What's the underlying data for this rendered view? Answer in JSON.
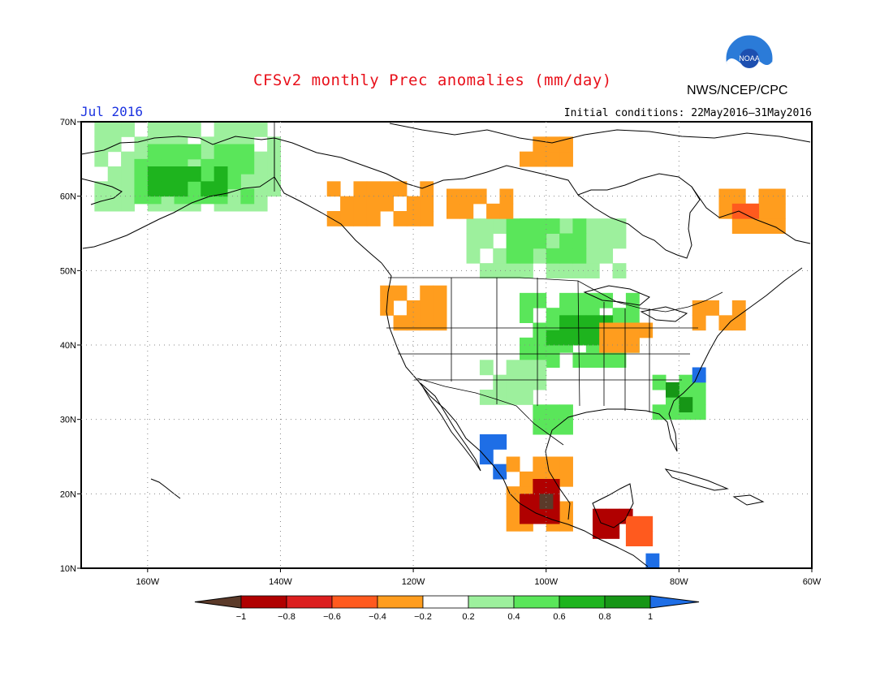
{
  "header": {
    "title": "CFSv2 monthly Prec anomalies (mm/day)",
    "month": "Jul 2016",
    "initial_conditions": "Initial conditions: 22May2016–31May2016",
    "org": "NWS/NCEP/CPC",
    "logo_text": "NOAA"
  },
  "map": {
    "lon_labels": [
      "160W",
      "140W",
      "120W",
      "100W",
      "80W",
      "60W"
    ],
    "lat_labels": [
      "70N",
      "60N",
      "50N",
      "40N",
      "30N",
      "20N",
      "10N"
    ],
    "lon_range": [
      -170,
      -60
    ],
    "lat_range": [
      10,
      70
    ]
  },
  "colorbar": {
    "labels": [
      "−1",
      "−0.8",
      "−0.6",
      "−0.4",
      "−0.2",
      "0.2",
      "0.4",
      "0.6",
      "0.8",
      "1"
    ],
    "colors": [
      "#5b3a29",
      "#b00000",
      "#dc1e1e",
      "#ff5a1e",
      "#ff9d1e",
      "#ffffff",
      "#9df09d",
      "#5ae65a",
      "#1eb41e",
      "#169616",
      "#1e6ee6"
    ]
  },
  "anomaly_regions": [
    {
      "class": "wet1",
      "color": "#9df09d",
      "lat_min": 58,
      "lat_max": 69,
      "lon_min": -168,
      "lon_max": -140
    },
    {
      "class": "wet2",
      "color": "#5ae65a",
      "lat_min": 59,
      "lat_max": 66,
      "lon_min": -162,
      "lon_max": -145
    },
    {
      "class": "wet3",
      "color": "#1eb41e",
      "lat_min": 60,
      "lat_max": 63,
      "lon_min": -160,
      "lon_max": -148
    },
    {
      "class": "wet1",
      "color": "#9df09d",
      "lat_min": 49,
      "lat_max": 57,
      "lon_min": -112,
      "lon_max": -88
    },
    {
      "class": "wet2",
      "color": "#5ae65a",
      "lat_min": 51,
      "lat_max": 56,
      "lon_min": -106,
      "lon_max": -94
    },
    {
      "class": "wet2",
      "color": "#5ae65a",
      "lat_min": 37,
      "lat_max": 46,
      "lon_min": -104,
      "lon_max": -86
    },
    {
      "class": "wet3",
      "color": "#1eb41e",
      "lat_min": 40,
      "lat_max": 44,
      "lon_min": -100,
      "lon_max": -90
    },
    {
      "class": "wet1",
      "color": "#9df09d",
      "lat_min": 32,
      "lat_max": 38,
      "lon_min": -110,
      "lon_max": -100
    },
    {
      "class": "wet2",
      "color": "#5ae65a",
      "lat_min": 30,
      "lat_max": 36,
      "lon_min": -84,
      "lon_max": -76
    },
    {
      "class": "wet4",
      "color": "#169616",
      "lat_min": 31,
      "lat_max": 35,
      "lon_min": -82,
      "lon_max": -78
    },
    {
      "class": "wet5",
      "color": "#1e6ee6",
      "lat_min": 35,
      "lat_max": 37,
      "lon_min": -78,
      "lon_max": -76
    },
    {
      "class": "wet5",
      "color": "#1e6ee6",
      "lat_min": 22,
      "lat_max": 28,
      "lon_min": -110,
      "lon_max": -106
    },
    {
      "class": "wet2",
      "color": "#5ae65a",
      "lat_min": 28,
      "lat_max": 31,
      "lon_min": -102,
      "lon_max": -96
    },
    {
      "class": "dry2",
      "color": "#ff9d1e",
      "lat_min": 56,
      "lat_max": 62,
      "lon_min": -133,
      "lon_max": -118
    },
    {
      "class": "dry2",
      "color": "#ff9d1e",
      "lat_min": 57,
      "lat_max": 61,
      "lon_min": -115,
      "lon_max": -106
    },
    {
      "class": "dry2",
      "color": "#ff9d1e",
      "lat_min": 64,
      "lat_max": 68,
      "lon_min": -104,
      "lon_max": -96
    },
    {
      "class": "dry2",
      "color": "#ff9d1e",
      "lat_min": 42,
      "lat_max": 48,
      "lon_min": -125,
      "lon_max": -116
    },
    {
      "class": "dry2",
      "color": "#ff9d1e",
      "lat_min": 55,
      "lat_max": 60,
      "lon_min": -74,
      "lon_max": -64
    },
    {
      "class": "dry3",
      "color": "#ff5a1e",
      "lat_min": 57,
      "lat_max": 59,
      "lon_min": -72,
      "lon_max": -68
    },
    {
      "class": "dry2",
      "color": "#ff9d1e",
      "lat_min": 42,
      "lat_max": 46,
      "lon_min": -78,
      "lon_max": -70
    },
    {
      "class": "dry2",
      "color": "#ff9d1e",
      "lat_min": 39,
      "lat_max": 42,
      "lon_min": -92,
      "lon_max": -84
    },
    {
      "class": "dry2",
      "color": "#ff9d1e",
      "lat_min": 15,
      "lat_max": 24,
      "lon_min": -106,
      "lon_max": -96
    },
    {
      "class": "dry4",
      "color": "#b00000",
      "lat_min": 16,
      "lat_max": 21,
      "lon_min": -104,
      "lon_max": -98
    },
    {
      "class": "dry5",
      "color": "#5b3a29",
      "lat_min": 18,
      "lat_max": 20,
      "lon_min": -101,
      "lon_max": -99
    },
    {
      "class": "dry4",
      "color": "#b00000",
      "lat_min": 14,
      "lat_max": 18,
      "lon_min": -93,
      "lon_max": -88
    },
    {
      "class": "dry5",
      "color": "#5b3a29",
      "lat_min": 15,
      "lat_max": 17,
      "lon_min": -90,
      "lon_max": -88
    },
    {
      "class": "dry3",
      "color": "#ff5a1e",
      "lat_min": 13,
      "lat_max": 16,
      "lon_min": -88,
      "lon_max": -84
    },
    {
      "class": "wet5",
      "color": "#1e6ee6",
      "lat_min": 10,
      "lat_max": 11,
      "lon_min": -85,
      "lon_max": -83
    }
  ]
}
